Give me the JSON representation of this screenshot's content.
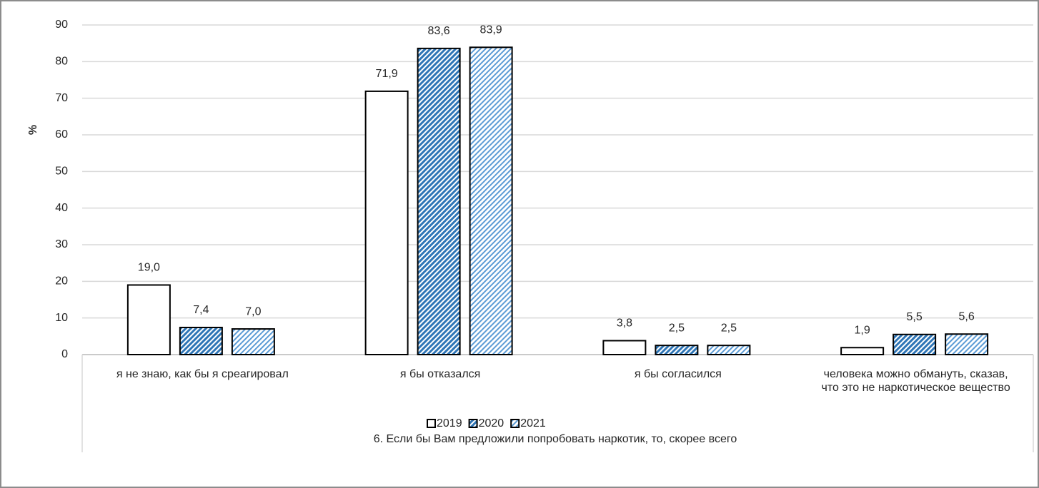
{
  "chart_data": {
    "type": "bar",
    "x_label": "6. Если бы Вам предложили  попробовать наркотик, то, скорее всего",
    "y_label": "%",
    "categories": [
      "я не знаю, как бы я среагировал",
      "я бы отказался",
      "я бы согласился",
      "человека можно обмануть, сказав, что это не наркотическое вещество"
    ],
    "series": [
      {
        "name": "2019",
        "color": "#ffffff",
        "values": [
          19.0,
          71.9,
          3.8,
          1.9
        ],
        "value_labels": [
          "19,0",
          "71,9",
          "3,8",
          "1,9"
        ]
      },
      {
        "name": "2020",
        "color": "#2e75b6",
        "values": [
          7.4,
          83.6,
          2.5,
          5.5
        ],
        "value_labels": [
          "7,4",
          "83,6",
          "2,5",
          "5,5"
        ]
      },
      {
        "name": "2021",
        "color": "#5b9bd5",
        "values": [
          7.0,
          83.9,
          2.5,
          5.6
        ],
        "value_labels": [
          "7,0",
          "83,9",
          "2,5",
          "5,6"
        ]
      }
    ],
    "ylim": [
      0,
      90
    ],
    "yticks": [
      0,
      10,
      20,
      30,
      40,
      50,
      60,
      70,
      80,
      90
    ],
    "grid": true,
    "legend": "bottom"
  }
}
